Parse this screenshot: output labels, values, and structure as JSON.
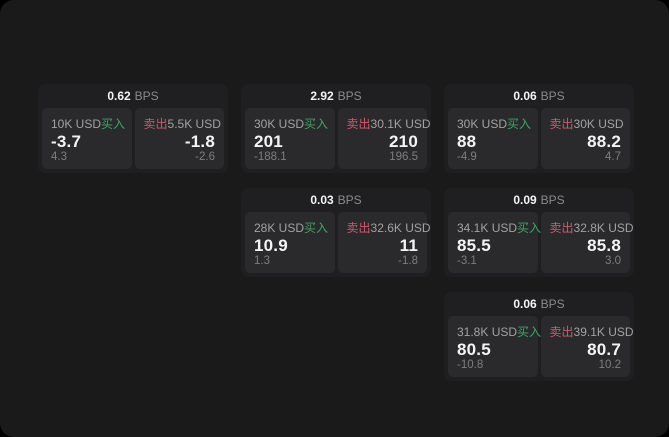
{
  "colors": {
    "window_bg": "#1a1a1b",
    "card_bg": "#1f1f21",
    "panel_bg": "#2a2a2c",
    "label_color": "#a2a2a2",
    "muted_color": "#8b8b8b",
    "delta_color": "#7e7e7e",
    "value_color": "#f4f4f4",
    "buy_color": "#3fa468",
    "sell_color": "#cd5a6e"
  },
  "labels": {
    "bps": "BPS",
    "buy": "买入",
    "sell": "卖出"
  },
  "cards": [
    {
      "bps": "0.62",
      "buy": {
        "size": "10K USD",
        "value": "-3.7",
        "delta": "4.3"
      },
      "sell": {
        "size": "5.5K USD",
        "value": "-1.8",
        "delta": "-2.6"
      }
    },
    {
      "bps": "2.92",
      "buy": {
        "size": "30K USD",
        "value": "201",
        "delta": "-188.1"
      },
      "sell": {
        "size": "30.1K USD",
        "value": "210",
        "delta": "196.5"
      }
    },
    {
      "bps": "0.06",
      "buy": {
        "size": "30K USD",
        "value": "88",
        "delta": "-4.9"
      },
      "sell": {
        "size": "30K USD",
        "value": "88.2",
        "delta": "4.7"
      }
    },
    {
      "bps": "0.03",
      "buy": {
        "size": "28K USD",
        "value": "10.9",
        "delta": "1.3"
      },
      "sell": {
        "size": "32.6K USD",
        "value": "11",
        "delta": "-1.8"
      }
    },
    {
      "bps": "0.09",
      "buy": {
        "size": "34.1K USD",
        "value": "85.5",
        "delta": "-3.1"
      },
      "sell": {
        "size": "32.8K USD",
        "value": "85.8",
        "delta": "3.0"
      }
    },
    {
      "bps": "0.06",
      "buy": {
        "size": "31.8K USD",
        "value": "80.5",
        "delta": "-10.8"
      },
      "sell": {
        "size": "39.1K USD",
        "value": "80.7",
        "delta": "10.2"
      }
    }
  ]
}
